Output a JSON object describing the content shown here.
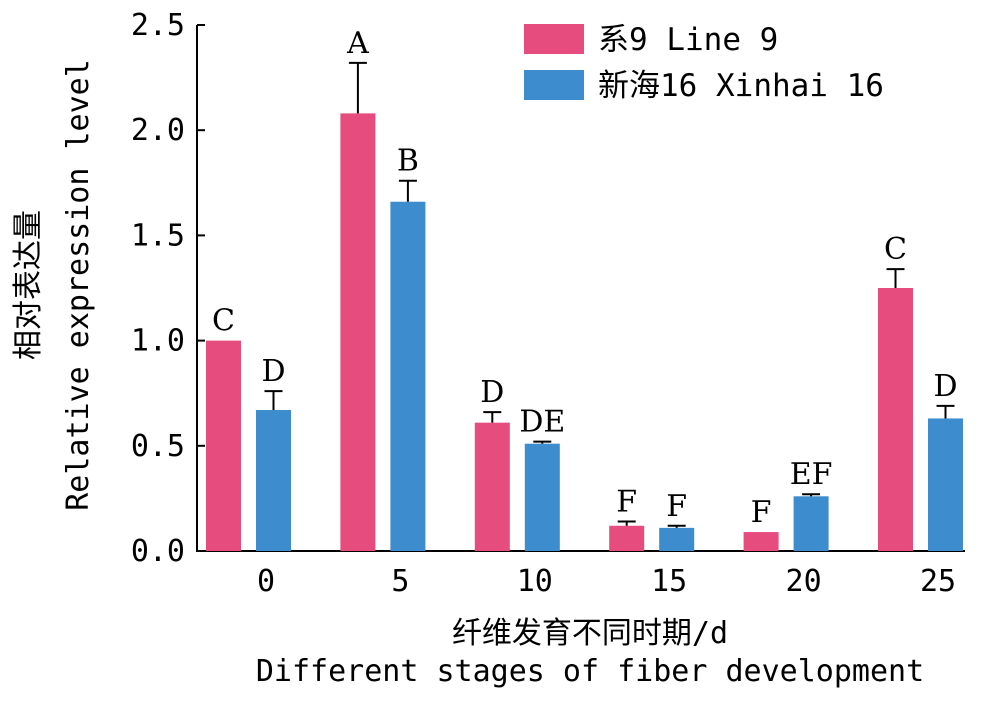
{
  "chart_data": {
    "type": "bar",
    "categories": [
      "0",
      "5",
      "10",
      "15",
      "20",
      "25"
    ],
    "series": [
      {
        "name": "系9 Line 9",
        "color": "#e64c7e",
        "values": [
          1.0,
          2.08,
          0.61,
          0.12,
          0.09,
          1.25
        ],
        "errors": [
          0.0,
          0.24,
          0.05,
          0.02,
          0.0,
          0.09
        ],
        "labels": [
          "C",
          "A",
          "D",
          "F",
          "F",
          "C"
        ]
      },
      {
        "name": "新海16 Xinhai 16",
        "color": "#3c8cce",
        "values": [
          0.67,
          1.66,
          0.51,
          0.11,
          0.26,
          0.63
        ],
        "errors": [
          0.09,
          0.1,
          0.01,
          0.01,
          0.01,
          0.06
        ],
        "labels": [
          "D",
          "B",
          "DE",
          "F",
          "EF",
          "D"
        ]
      }
    ],
    "xlabel_cn": "纤维发育不同时期/d",
    "xlabel_en": "Different stages of fiber development",
    "ylabel_cn": "相对表达量",
    "ylabel_en": "Relative expression level",
    "ylim": [
      0,
      2.5
    ],
    "yticks": [
      "0.0",
      "0.5",
      "1.0",
      "1.5",
      "2.0",
      "2.5"
    ],
    "grid": false,
    "legend_position": "top-right"
  }
}
